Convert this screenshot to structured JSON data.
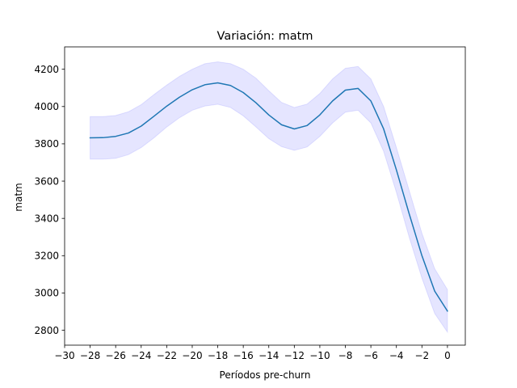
{
  "chart_data": {
    "type": "line",
    "title": "Variación: matm",
    "xlabel": "Períodos pre-churn",
    "ylabel": "matm",
    "xlim": [
      -30,
      1.4
    ],
    "ylim": [
      2720,
      4320
    ],
    "xticks": [
      -30,
      -28,
      -26,
      -24,
      -22,
      -20,
      -18,
      -16,
      -14,
      -12,
      -10,
      -8,
      -6,
      -4,
      -2,
      0
    ],
    "xtick_labels": [
      "−30",
      "−28",
      "−26",
      "−24",
      "−22",
      "−20",
      "−18",
      "−16",
      "−14",
      "−12",
      "−10",
      "−8",
      "−6",
      "−4",
      "−2",
      "0"
    ],
    "yticks": [
      2800,
      3000,
      3200,
      3400,
      3600,
      3800,
      4000,
      4200
    ],
    "ytick_labels": [
      "2800",
      "3000",
      "3200",
      "3400",
      "3600",
      "3800",
      "4000",
      "4200"
    ],
    "grid": false,
    "series": [
      {
        "line_color": "#1f77b4",
        "band_color": "#0000ff",
        "band_opacity": 0.1,
        "x": [
          -28,
          -27,
          -26,
          -25,
          -24,
          -23,
          -22,
          -21,
          -20,
          -19,
          -18,
          -17,
          -16,
          -15,
          -14,
          -13,
          -12,
          -11,
          -10,
          -9,
          -8,
          -7,
          -6,
          -5,
          -4,
          -3,
          -2,
          -1,
          0
        ],
        "values": [
          3832,
          3833,
          3840,
          3858,
          3895,
          3948,
          4002,
          4050,
          4090,
          4117,
          4127,
          4113,
          4075,
          4020,
          3955,
          3902,
          3880,
          3898,
          3955,
          4030,
          4088,
          4097,
          4030,
          3880,
          3660,
          3425,
          3200,
          3010,
          2903
        ],
        "lower": [
          3718,
          3718,
          3722,
          3742,
          3780,
          3832,
          3890,
          3940,
          3980,
          4003,
          4012,
          3995,
          3950,
          3890,
          3828,
          3785,
          3765,
          3783,
          3840,
          3912,
          3970,
          3980,
          3912,
          3760,
          3540,
          3300,
          3080,
          2890,
          2790
        ],
        "upper": [
          3946,
          3946,
          3952,
          3972,
          4010,
          4064,
          4115,
          4162,
          4200,
          4230,
          4240,
          4230,
          4200,
          4152,
          4085,
          4022,
          3995,
          4013,
          4070,
          4148,
          4205,
          4215,
          4148,
          4000,
          3780,
          3550,
          3320,
          3130,
          3018
        ]
      }
    ]
  }
}
